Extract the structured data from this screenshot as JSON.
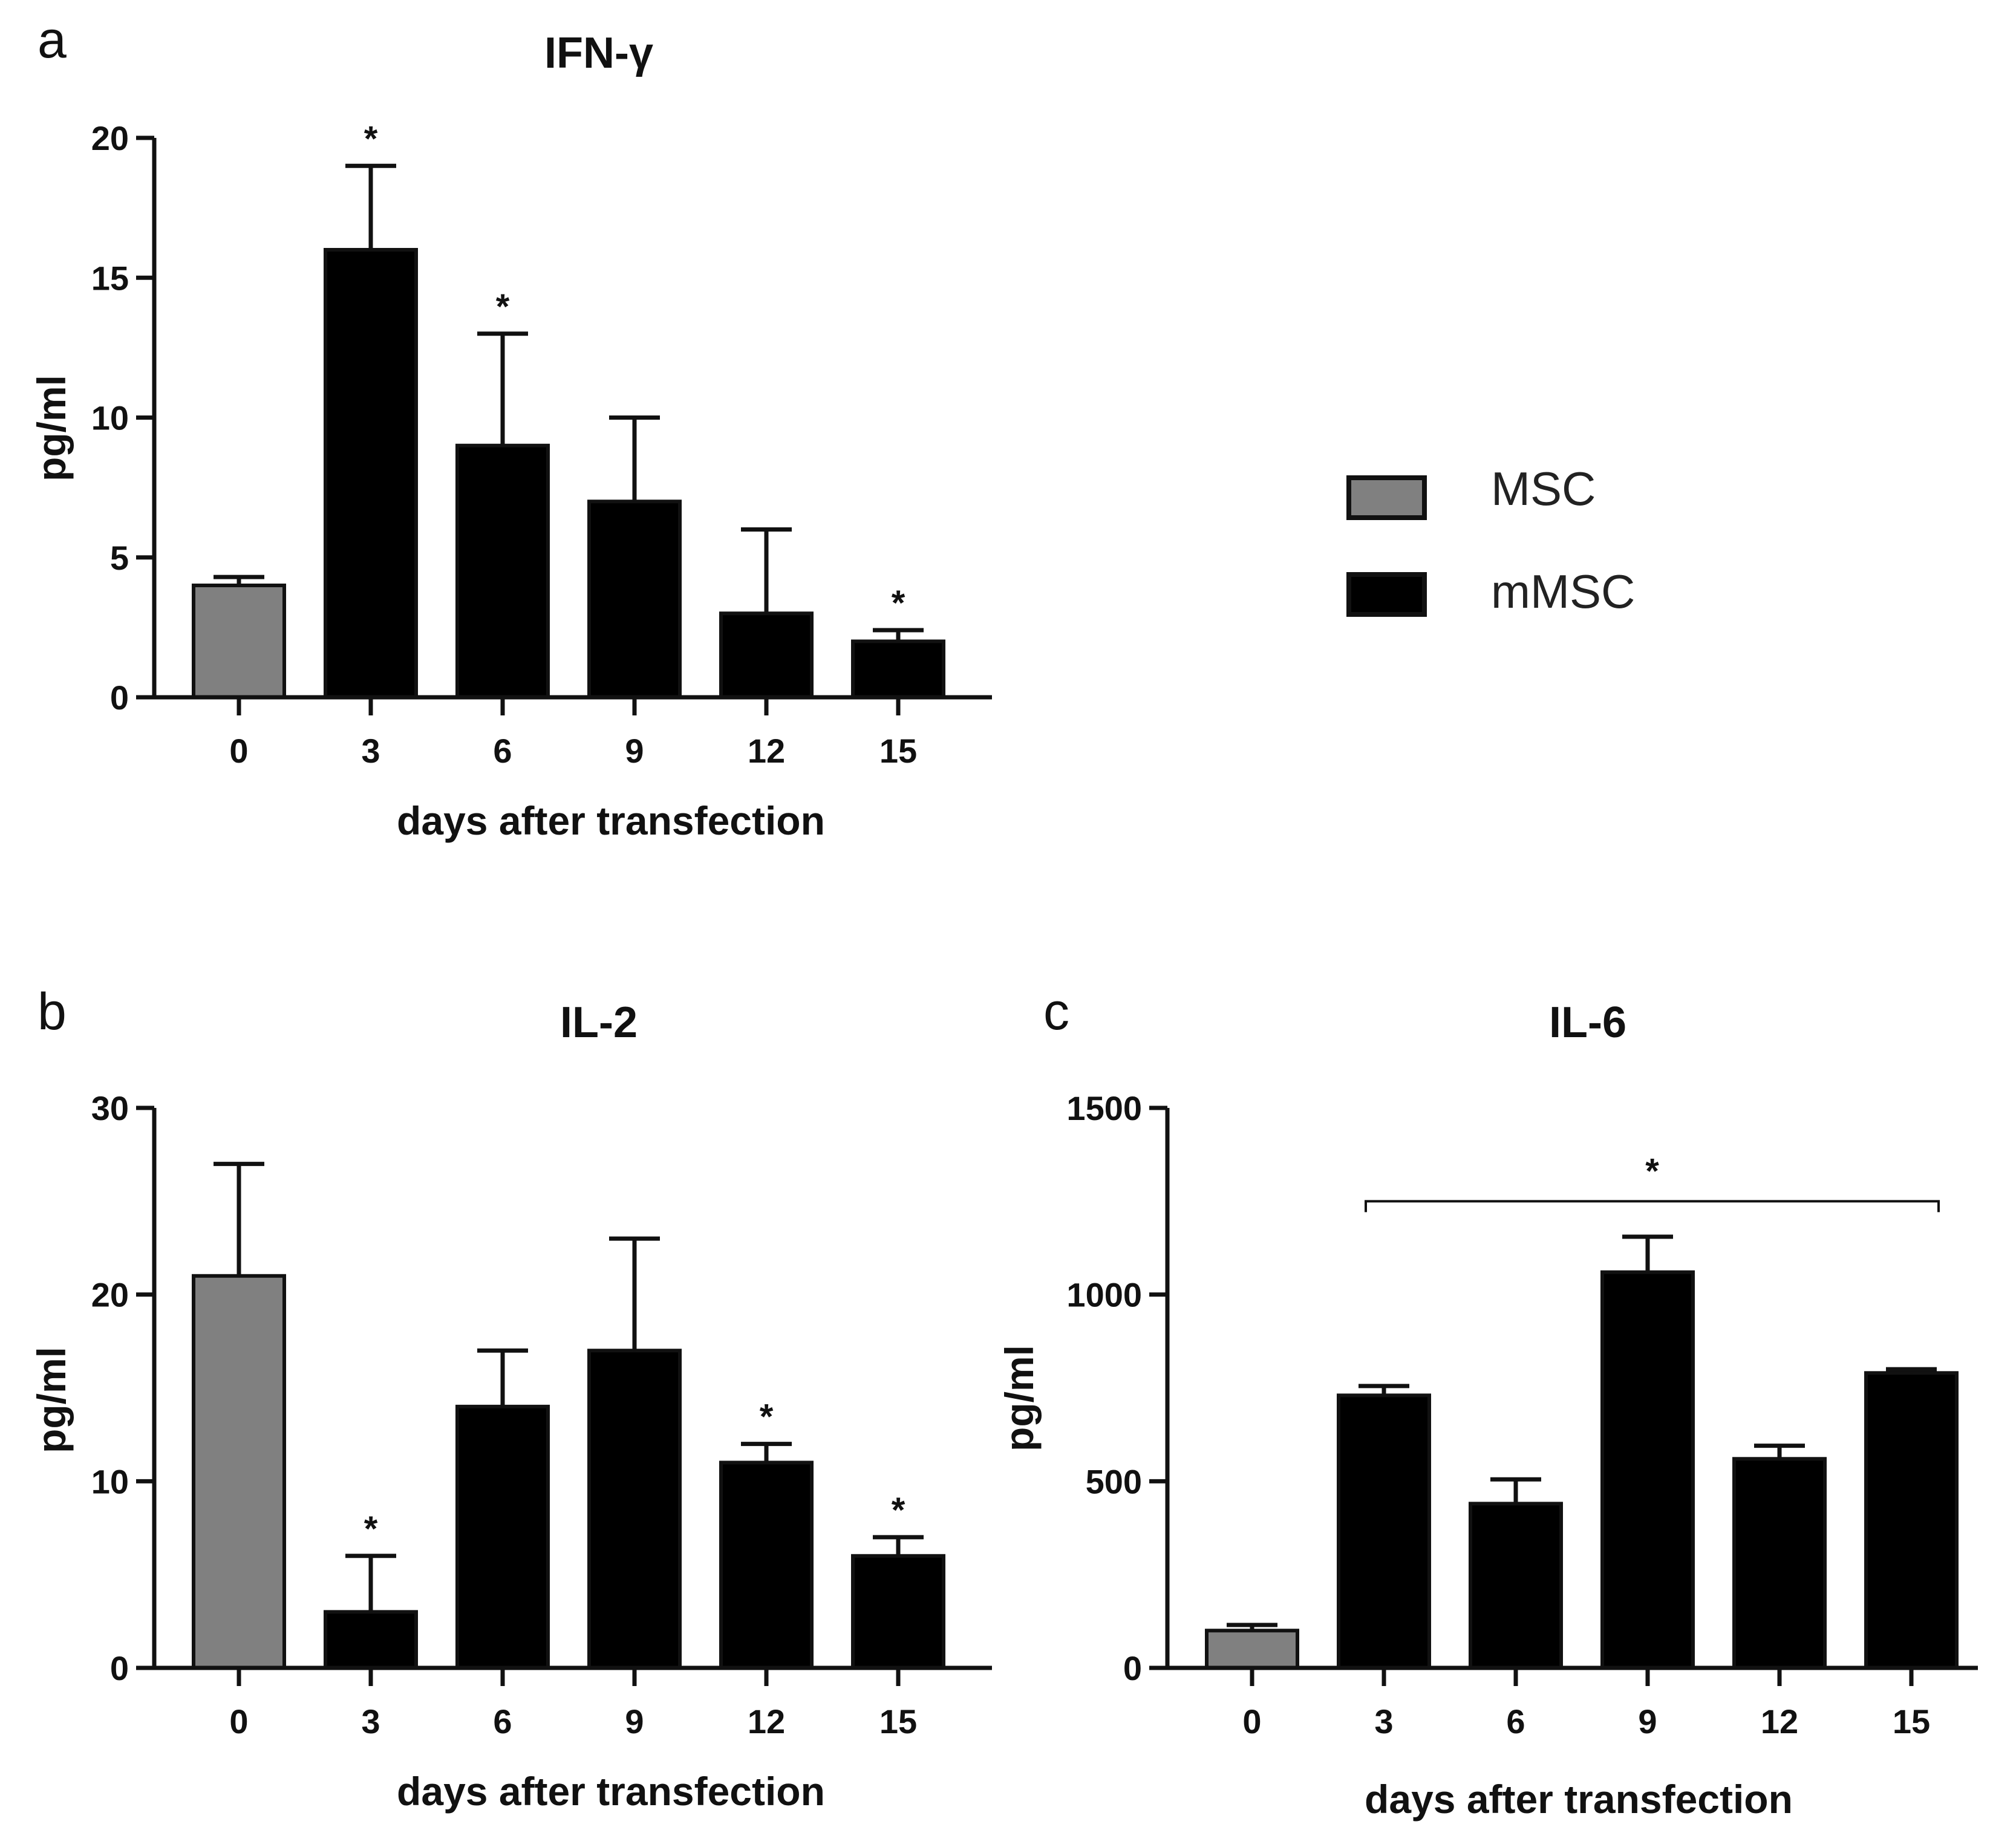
{
  "colors": {
    "msc": "#808080",
    "mmsc": "#000000",
    "axis": "#111111",
    "background": "#ffffff"
  },
  "legend": {
    "items": [
      {
        "label": "MSC",
        "color": "#808080"
      },
      {
        "label": "mMSC",
        "color": "#000000"
      }
    ]
  },
  "chart_data": [
    {
      "type": "bar",
      "panel": "a",
      "title": "IFN-γ",
      "xlabel": "days after transfection",
      "ylabel": "pg/ml",
      "categories": [
        "0",
        "3",
        "6",
        "9",
        "12",
        "15"
      ],
      "series_by_bar": [
        "MSC",
        "mMSC",
        "mMSC",
        "mMSC",
        "mMSC",
        "mMSC"
      ],
      "values": [
        4,
        16,
        9,
        7,
        3,
        2
      ],
      "errors": [
        0.3,
        3,
        4,
        3,
        3,
        0.4
      ],
      "significant": [
        false,
        true,
        true,
        false,
        false,
        true
      ],
      "star_label": "*",
      "bracket": null,
      "ylim": [
        0,
        20
      ],
      "yticks": [
        0,
        5,
        10,
        15,
        20
      ],
      "grid": false
    },
    {
      "type": "bar",
      "panel": "b",
      "title": "IL-2",
      "xlabel": "days after transfection",
      "ylabel": "pg/ml",
      "categories": [
        "0",
        "3",
        "6",
        "9",
        "12",
        "15"
      ],
      "series_by_bar": [
        "MSC",
        "mMSC",
        "mMSC",
        "mMSC",
        "mMSC",
        "mMSC"
      ],
      "values": [
        21,
        3,
        14,
        17,
        11,
        6
      ],
      "errors": [
        6,
        3,
        3,
        6,
        1,
        1
      ],
      "significant": [
        false,
        true,
        false,
        false,
        true,
        true
      ],
      "star_label": "*",
      "bracket": null,
      "ylim": [
        0,
        30
      ],
      "yticks": [
        0,
        10,
        20,
        30
      ],
      "grid": false
    },
    {
      "type": "bar",
      "panel": "c",
      "title": "IL-6",
      "xlabel": "days after transfection",
      "ylabel": "pg/ml",
      "categories": [
        "0",
        "3",
        "6",
        "9",
        "12",
        "15"
      ],
      "series_by_bar": [
        "MSC",
        "mMSC",
        "mMSC",
        "mMSC",
        "mMSC",
        "mMSC"
      ],
      "values": [
        100,
        730,
        440,
        1060,
        560,
        790
      ],
      "errors": [
        15,
        25,
        65,
        95,
        35,
        10
      ],
      "significant": [
        false,
        false,
        false,
        false,
        false,
        false
      ],
      "star_label": "*",
      "bracket": {
        "from_category": "3",
        "to_category": "15",
        "label": "*",
        "value": 1250
      },
      "ylim": [
        0,
        1500
      ],
      "yticks": [
        0,
        500,
        1000,
        1500
      ],
      "grid": false
    }
  ]
}
